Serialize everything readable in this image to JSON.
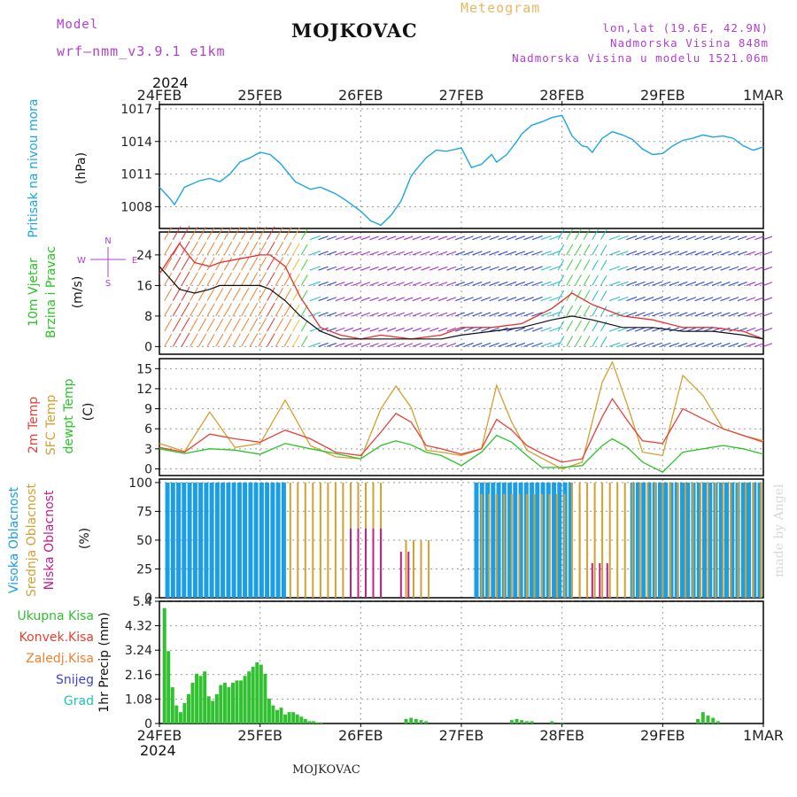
{
  "header": {
    "model_label": "Model",
    "model_name": "wrf—nmm_v3.9.1  e1km",
    "title": "MOJKOVAC",
    "subtitle": "Meteogram",
    "lonlat": "lon,lat (19.6E, 42.9N)",
    "elevation": "Nadmorska Visina 848m",
    "model_elevation": "Nadmorska Visina u modelu 1521.06m",
    "footer_title": "MOJKOVAC",
    "watermark": "made by Angel",
    "year": "2024"
  },
  "colors": {
    "pressure": "#1aa6e6",
    "temp2m": "#e8403a",
    "sfc_temp": "#d4a030",
    "dewpt": "#28c428",
    "high_cloud": "#1a9ee6",
    "mid_cloud": "#d4a030",
    "low_cloud": "#c0208a",
    "total_rain": "#30c030",
    "conv_rain": "#e84030",
    "frozen_rain": "#f08030",
    "snow": "#4040e0",
    "hail": "#20c0c0",
    "purple_text": "#b040d0",
    "gold_text": "#e8b860"
  },
  "chart_data": [
    {
      "type": "line",
      "panel": "pressure",
      "x_ticks": [
        "24FEB",
        "25FEB",
        "26FEB",
        "27FEB",
        "28FEB",
        "29FEB",
        "1MAR"
      ],
      "y_label_left": "Pritisak na nivou mora",
      "y_unit": "(hPa)",
      "yticks": [
        1008,
        1011,
        1014,
        1017
      ],
      "ylim": [
        1006,
        1017.4
      ],
      "grid": true,
      "series": [
        {
          "x": [
            0,
            0.1,
            0.15,
            0.25,
            0.3,
            0.4,
            0.5,
            0.6,
            0.7,
            0.8,
            0.9,
            1.0,
            1.1,
            1.2,
            1.35,
            1.5,
            1.6,
            1.65,
            1.75,
            1.85,
            2.0,
            2.1,
            2.2,
            2.3,
            2.4,
            2.5,
            2.55,
            2.65,
            2.75,
            2.85,
            3.0,
            3.1,
            3.2,
            3.3,
            3.35,
            3.45,
            3.55,
            3.6,
            3.7,
            3.8,
            3.9,
            4.0,
            4.1,
            4.2,
            4.25,
            4.3,
            4.4,
            4.5,
            4.6,
            4.7,
            4.8,
            4.9,
            5.0,
            5.1,
            5.2,
            5.3,
            5.4,
            5.5,
            5.6,
            5.7,
            5.8,
            5.9,
            6.0
          ],
          "values": [
            1009.8,
            1008.8,
            1008.2,
            1009.8,
            1010.0,
            1010.4,
            1010.6,
            1010.3,
            1011.0,
            1012.1,
            1012.5,
            1013.0,
            1012.8,
            1012.0,
            1010.3,
            1009.6,
            1009.8,
            1009.6,
            1009.2,
            1008.6,
            1007.6,
            1006.7,
            1006.3,
            1007.2,
            1008.5,
            1010.8,
            1011.4,
            1012.5,
            1013.2,
            1013.1,
            1013.4,
            1011.6,
            1011.9,
            1012.8,
            1012.1,
            1012.8,
            1014.0,
            1014.7,
            1015.5,
            1015.8,
            1016.2,
            1016.4,
            1014.5,
            1013.6,
            1013.5,
            1013.0,
            1014.3,
            1014.9,
            1014.6,
            1014.2,
            1013.3,
            1012.8,
            1012.9,
            1013.6,
            1014.1,
            1014.3,
            1014.6,
            1014.4,
            1014.5,
            1014.3,
            1013.6,
            1013.2,
            1013.5
          ]
        }
      ]
    },
    {
      "type": "line",
      "panel": "wind",
      "y_label_left": "10m Vjetar",
      "y_label_left2": "Brzina i Pravac",
      "y_unit": "(m/s)",
      "compass": [
        "W",
        "E",
        "N",
        "S"
      ],
      "yticks": [
        0,
        8,
        16,
        24
      ],
      "ylim": [
        -2,
        30
      ],
      "grid": true,
      "series": [
        {
          "x": [
            0,
            0.2,
            0.35,
            0.5,
            0.6,
            0.8,
            1.0,
            1.1,
            1.25,
            1.4,
            1.6,
            1.8,
            2.0,
            2.2,
            2.5,
            2.8,
            3.0,
            3.3,
            3.6,
            3.9,
            4.1,
            4.3,
            4.6,
            4.9,
            5.2,
            5.5,
            5.8,
            6.0
          ],
          "values": [
            19,
            27,
            22,
            21,
            22,
            23,
            24,
            24,
            21,
            13,
            5,
            3,
            2,
            3,
            2,
            3,
            5,
            5,
            6,
            10,
            14,
            11,
            8,
            7,
            5,
            5,
            4,
            2
          ]
        },
        {
          "x": [
            0,
            0.2,
            0.35,
            0.5,
            0.6,
            0.8,
            1.0,
            1.1,
            1.25,
            1.4,
            1.6,
            1.8,
            2.0,
            2.2,
            2.5,
            2.8,
            3.0,
            3.3,
            3.6,
            3.9,
            4.1,
            4.3,
            4.6,
            4.9,
            5.2,
            5.5,
            5.8,
            6.0
          ],
          "values": [
            21,
            15,
            14,
            15,
            16,
            16,
            16,
            15,
            12,
            8,
            4,
            2,
            2,
            2,
            2,
            2,
            3,
            4,
            5,
            7,
            8,
            7,
            5,
            5,
            4,
            4,
            3,
            2
          ]
        }
      ]
    },
    {
      "type": "line",
      "panel": "temperature",
      "y_label_left": [
        "2m Temp",
        "SFC Temp",
        "dewpt Temp"
      ],
      "y_unit": "(C)",
      "yticks": [
        0,
        3,
        6,
        9,
        12,
        15
      ],
      "ylim": [
        -1,
        16.5
      ],
      "grid": true,
      "series": [
        {
          "name": "2m Temp",
          "x": [
            0,
            0.25,
            0.5,
            0.75,
            1.0,
            1.25,
            1.5,
            1.75,
            2.0,
            2.2,
            2.35,
            2.5,
            2.65,
            2.8,
            3.0,
            3.2,
            3.35,
            3.5,
            3.65,
            3.8,
            4.0,
            4.2,
            4.4,
            4.5,
            4.65,
            4.8,
            5.0,
            5.2,
            5.4,
            5.6,
            5.8,
            6.0
          ],
          "values": [
            3.2,
            2.5,
            5.2,
            4.5,
            4.0,
            5.8,
            4.5,
            2.5,
            2.0,
            5.5,
            8.3,
            7.0,
            3.5,
            3.0,
            2.2,
            3.0,
            7.4,
            5.8,
            3.5,
            2.3,
            1.0,
            1.5,
            7.8,
            10.5,
            7.2,
            4.2,
            3.8,
            9.0,
            7.5,
            6.0,
            5.0,
            4.0
          ]
        },
        {
          "name": "SFC Temp",
          "x": [
            0,
            0.25,
            0.5,
            0.75,
            1.0,
            1.25,
            1.5,
            1.75,
            2.0,
            2.2,
            2.35,
            2.5,
            2.65,
            2.8,
            3.0,
            3.2,
            3.35,
            3.5,
            3.65,
            3.8,
            4.0,
            4.2,
            4.4,
            4.5,
            4.65,
            4.8,
            5.0,
            5.2,
            5.4,
            5.6,
            5.8,
            6.0
          ],
          "values": [
            3.8,
            2.6,
            8.5,
            3.2,
            3.8,
            10.3,
            3.5,
            1.8,
            1.5,
            9.0,
            12.4,
            9.2,
            2.8,
            2.5,
            2.0,
            3.0,
            12.5,
            7.0,
            2.8,
            1.6,
            0.0,
            1.0,
            13.0,
            16.0,
            9.5,
            2.5,
            2.0,
            14.0,
            11.0,
            6.0,
            5.0,
            4.2
          ]
        },
        {
          "name": "dewpt Temp",
          "x": [
            0,
            0.25,
            0.5,
            0.75,
            1.0,
            1.25,
            1.5,
            1.75,
            2.0,
            2.2,
            2.35,
            2.5,
            2.65,
            2.8,
            3.0,
            3.2,
            3.35,
            3.5,
            3.65,
            3.8,
            4.0,
            4.2,
            4.4,
            4.5,
            4.65,
            4.8,
            5.0,
            5.2,
            5.4,
            5.6,
            5.8,
            6.0
          ],
          "values": [
            3.0,
            2.3,
            3.0,
            2.8,
            2.2,
            3.8,
            3.0,
            2.3,
            1.5,
            3.5,
            4.2,
            3.6,
            2.5,
            2.0,
            0.5,
            2.5,
            5.0,
            4.0,
            2.0,
            0.2,
            0.2,
            0.5,
            3.5,
            4.5,
            3.2,
            1.0,
            -0.5,
            2.5,
            3.0,
            3.5,
            3.0,
            2.2
          ]
        }
      ]
    },
    {
      "type": "bar",
      "panel": "cloud",
      "y_label_left": [
        "Visoka Oblacnost",
        "Srednja Oblacnost",
        "Niska Oblacnost"
      ],
      "y_unit": "(%)",
      "yticks": [
        0,
        25,
        50,
        75,
        100
      ],
      "ylim": [
        0,
        103
      ],
      "grid": true,
      "series": [
        {
          "name": "Visoka Oblacnost",
          "spans": [
            [
              0.08,
              1.25,
              100
            ],
            [
              3.15,
              4.1,
              100
            ],
            [
              4.7,
              6.0,
              100
            ]
          ]
        },
        {
          "name": "Srednja Oblacnost",
          "spans": [
            [
              1.3,
              2.25,
              100
            ],
            [
              2.45,
              2.7,
              50
            ],
            [
              3.2,
              4.2,
              90
            ],
            [
              4.1,
              6.0,
              100
            ]
          ]
        },
        {
          "name": "Niska Oblacnost",
          "spans": [
            [
              1.9,
              2.2,
              60
            ],
            [
              2.4,
              2.5,
              40
            ],
            [
              4.3,
              4.5,
              30
            ]
          ]
        }
      ]
    },
    {
      "type": "bar",
      "panel": "precip",
      "y_label_left": [
        "Ukupna Kisa",
        "Konvek.Kisa",
        "Zaledj.Kisa",
        "Snijeg",
        "Grad"
      ],
      "y_unit": "1hr Precip (mm)",
      "yticks": [
        0,
        1.08,
        2.16,
        3.24,
        4.32,
        5.4
      ],
      "ylim": [
        0,
        5.4
      ],
      "grid": true,
      "series": [
        {
          "name": "Ukupna Kisa",
          "x": [
            0.05,
            0.09,
            0.13,
            0.17,
            0.21,
            0.25,
            0.29,
            0.33,
            0.37,
            0.41,
            0.45,
            0.49,
            0.53,
            0.57,
            0.61,
            0.65,
            0.69,
            0.73,
            0.77,
            0.81,
            0.85,
            0.89,
            0.93,
            0.97,
            1.01,
            1.05,
            1.09,
            1.13,
            1.17,
            1.21,
            1.25,
            1.29,
            1.33,
            1.37,
            1.41,
            1.45,
            1.49,
            1.53,
            1.57,
            1.61,
            2.45,
            2.5,
            2.55,
            2.6,
            2.65,
            3.5,
            3.55,
            3.6,
            3.65,
            3.7,
            3.9,
            4.0,
            5.35,
            5.4,
            5.45,
            5.5,
            5.55
          ],
          "values": [
            5.1,
            3.2,
            1.6,
            0.8,
            0.5,
            0.9,
            1.3,
            1.8,
            2.2,
            2.1,
            2.3,
            1.2,
            1.0,
            1.3,
            1.7,
            1.8,
            1.6,
            1.8,
            1.9,
            1.9,
            2.1,
            2.3,
            2.5,
            2.7,
            2.6,
            2.2,
            1.1,
            0.8,
            0.6,
            0.7,
            0.4,
            0.5,
            0.5,
            0.4,
            0.3,
            0.2,
            0.1,
            0.1,
            0.05,
            0.05,
            0.2,
            0.25,
            0.2,
            0.15,
            0.1,
            0.15,
            0.2,
            0.15,
            0.1,
            0.1,
            0.1,
            0.05,
            0.2,
            0.5,
            0.35,
            0.25,
            0.1
          ]
        }
      ]
    }
  ]
}
